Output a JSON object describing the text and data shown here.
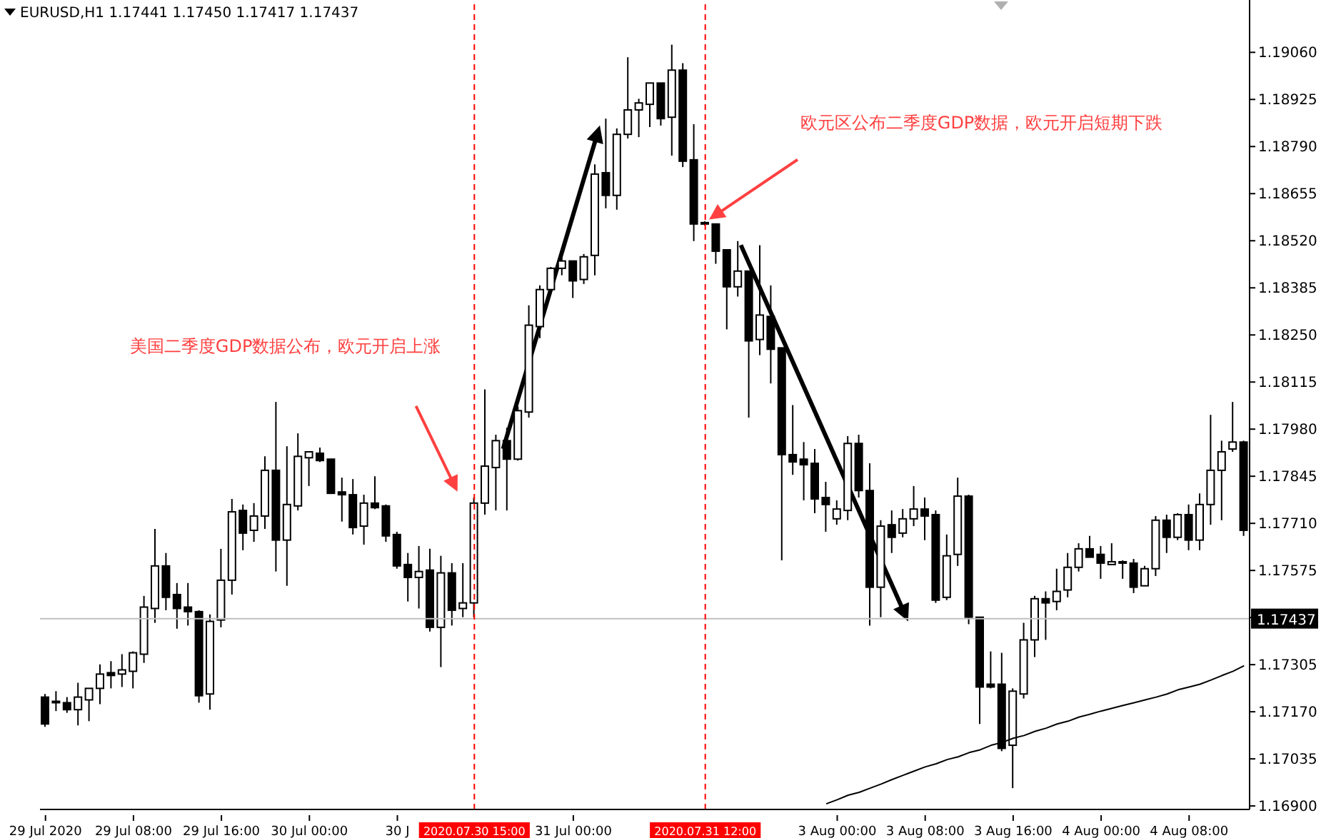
{
  "chart_data": {
    "type": "candlestick",
    "title": "EURUSD,H1  1.17441 1.17450 1.17417 1.17437",
    "categories": [
      "29 Jul 2020",
      null,
      null,
      null,
      null,
      null,
      null,
      null,
      "29 Jul 08:00",
      null,
      null,
      null,
      null,
      null,
      null,
      null,
      "29 Jul 16:00",
      null,
      null,
      null,
      null,
      null,
      null,
      null,
      "30 Jul 00:00",
      null,
      null,
      null,
      null,
      null,
      null,
      null,
      "30 J",
      null,
      null,
      null,
      null,
      null,
      null,
      "2020.07.30 15:00",
      null,
      null,
      null,
      null,
      null,
      null,
      null,
      null,
      "31 Jul 00:00",
      null,
      null,
      null,
      null,
      null,
      null,
      null,
      null,
      null,
      null,
      null,
      "2020.07.31 12:00",
      null,
      null,
      null,
      null,
      null,
      null,
      null,
      null,
      null,
      null,
      null,
      "3 Aug 00:00",
      null,
      null,
      null,
      null,
      null,
      null,
      null,
      "3 Aug 08:00",
      null,
      null,
      null,
      null,
      null,
      null,
      null,
      "3 Aug 16:00",
      null,
      null,
      null,
      null,
      null,
      null,
      null,
      "4 Aug 00:00",
      null,
      null,
      null,
      null,
      null,
      null,
      null,
      "4 Aug 08:00",
      null,
      null,
      null,
      null,
      null
    ],
    "ohlc": [
      [
        1.17212,
        1.17221,
        1.17127,
        1.17135
      ],
      [
        1.17196,
        1.17229,
        1.17172,
        1.172
      ],
      [
        1.17196,
        1.17212,
        1.17167,
        1.17176
      ],
      [
        1.17176,
        1.17253,
        1.17131,
        1.17212
      ],
      [
        1.17204,
        1.17237,
        1.17143,
        1.17237
      ],
      [
        1.17237,
        1.17306,
        1.17192,
        1.17278
      ],
      [
        1.17282,
        1.17315,
        1.17237,
        1.17274
      ],
      [
        1.17278,
        1.17335,
        1.17241,
        1.1729
      ],
      [
        1.17286,
        1.17343,
        1.17237,
        1.17339
      ],
      [
        1.17335,
        1.17502,
        1.1731,
        1.1747
      ],
      [
        1.17466,
        1.17694,
        1.17425,
        1.17588
      ],
      [
        1.17588,
        1.17625,
        1.17461,
        1.17498
      ],
      [
        1.17506,
        1.17539,
        1.17408,
        1.17466
      ],
      [
        1.1747,
        1.17539,
        1.17417,
        1.17457
      ],
      [
        1.17457,
        1.17461,
        1.17196,
        1.17216
      ],
      [
        1.17221,
        1.17449,
        1.17176,
        1.17429
      ],
      [
        1.17433,
        1.17637,
        1.17412,
        1.17547
      ],
      [
        1.17547,
        1.1778,
        1.17506,
        1.17743
      ],
      [
        1.17747,
        1.17764,
        1.17633,
        1.17682
      ],
      [
        1.1769,
        1.17768,
        1.17657,
        1.17731
      ],
      [
        1.17731,
        1.17902,
        1.17694,
        1.17862
      ],
      [
        1.17862,
        1.18058,
        1.17572,
        1.17662
      ],
      [
        1.17662,
        1.17931,
        1.17531,
        1.17764
      ],
      [
        1.1776,
        1.17968,
        1.17747,
        1.17902
      ],
      [
        1.17898,
        1.17915,
        1.17817,
        1.17915
      ],
      [
        1.17911,
        1.17927,
        1.17886,
        1.1789
      ],
      [
        1.17894,
        1.17894,
        1.17796,
        1.17796
      ],
      [
        1.178,
        1.17841,
        1.17715,
        1.17792
      ],
      [
        1.17792,
        1.17837,
        1.17678,
        1.17698
      ],
      [
        1.17702,
        1.17792,
        1.17649,
        1.17768
      ],
      [
        1.17768,
        1.17845,
        1.17751,
        1.17755
      ],
      [
        1.1776,
        1.17764,
        1.17657,
        1.17674
      ],
      [
        1.17678,
        1.17686,
        1.1758,
        1.17588
      ],
      [
        1.17592,
        1.17625,
        1.17486,
        1.17555
      ],
      [
        1.17555,
        1.17645,
        1.17466,
        1.17572
      ],
      [
        1.17576,
        1.17637,
        1.174,
        1.17412
      ],
      [
        1.17412,
        1.17617,
        1.17298,
        1.17568
      ],
      [
        1.17568,
        1.17596,
        1.17417,
        1.17461
      ],
      [
        1.17466,
        1.17596,
        1.17441,
        1.17482
      ],
      [
        1.17482,
        1.17784,
        1.17441,
        1.17768
      ],
      [
        1.17768,
        1.18094,
        1.17735,
        1.17874
      ],
      [
        1.1787,
        1.17964,
        1.17747,
        1.17947
      ],
      [
        1.17947,
        1.17984,
        1.17747,
        1.17894
      ],
      [
        1.17894,
        1.18045,
        1.1789,
        1.18033
      ],
      [
        1.18029,
        1.18335,
        1.18013,
        1.18278
      ],
      [
        1.18274,
        1.18392,
        1.18241,
        1.1838
      ],
      [
        1.1838,
        1.18445,
        1.18376,
        1.18441
      ],
      [
        1.18441,
        1.18474,
        1.18421,
        1.18462
      ],
      [
        1.18462,
        1.18462,
        1.18356,
        1.18405
      ],
      [
        1.18409,
        1.18482,
        1.18396,
        1.18474
      ],
      [
        1.18478,
        1.18739,
        1.18421,
        1.18711
      ],
      [
        1.18715,
        1.1887,
        1.18613,
        1.1865
      ],
      [
        1.1865,
        1.18842,
        1.18609,
        1.18825
      ],
      [
        1.18825,
        1.19046,
        1.18813,
        1.18895
      ],
      [
        1.18895,
        1.18927,
        1.18817,
        1.18915
      ],
      [
        1.18911,
        1.18972,
        1.18846,
        1.18972
      ],
      [
        1.18972,
        1.18972,
        1.1885,
        1.1887
      ],
      [
        1.18874,
        1.19082,
        1.18764,
        1.19009
      ],
      [
        1.19009,
        1.19029,
        1.18731,
        1.18748
      ],
      [
        1.18752,
        1.18854,
        1.18519,
        1.18568
      ],
      [
        1.18568,
        1.18576,
        1.18564,
        1.18572
      ],
      [
        1.18568,
        1.18568,
        1.18454,
        1.1849
      ],
      [
        1.18494,
        1.18494,
        1.18266,
        1.18388
      ],
      [
        1.18388,
        1.18519,
        1.1836,
        1.18433
      ],
      [
        1.18433,
        1.18433,
        1.18013,
        1.18233
      ],
      [
        1.18237,
        1.18507,
        1.18192,
        1.18307
      ],
      [
        1.18303,
        1.18392,
        1.18111,
        1.18209
      ],
      [
        1.18213,
        1.18213,
        1.17604,
        1.17907
      ],
      [
        1.17907,
        1.18049,
        1.17849,
        1.17886
      ],
      [
        1.17894,
        1.17943,
        1.17776,
        1.17878
      ],
      [
        1.17882,
        1.17923,
        1.17739,
        1.1778
      ],
      [
        1.17784,
        1.17829,
        1.17686,
        1.17764
      ],
      [
        1.17723,
        1.17776,
        1.17706,
        1.17751
      ],
      [
        1.17747,
        1.1796,
        1.17719,
        1.17939
      ],
      [
        1.17939,
        1.17964,
        1.17784,
        1.17804
      ],
      [
        1.17804,
        1.17882,
        1.17417,
        1.17527
      ],
      [
        1.17527,
        1.17719,
        1.17441,
        1.17702
      ],
      [
        1.17706,
        1.17747,
        1.17625,
        1.1767
      ],
      [
        1.17682,
        1.17751,
        1.1767,
        1.17723
      ],
      [
        1.17723,
        1.17817,
        1.17702,
        1.17751
      ],
      [
        1.17751,
        1.17784,
        1.17662,
        1.17731
      ],
      [
        1.17735,
        1.17747,
        1.17482,
        1.1749
      ],
      [
        1.17498,
        1.17678,
        1.1749,
        1.17617
      ],
      [
        1.17621,
        1.17841,
        1.17588,
        1.17788
      ],
      [
        1.17788,
        1.17792,
        1.17421,
        1.17441
      ],
      [
        1.17441,
        1.17441,
        1.17135,
        1.17241
      ],
      [
        1.17249,
        1.17343,
        1.17237,
        1.17241
      ],
      [
        1.17249,
        1.17339,
        1.17057,
        1.17065
      ],
      [
        1.17074,
        1.17237,
        1.16951,
        1.17229
      ],
      [
        1.17221,
        1.17425,
        1.17208,
        1.17376
      ],
      [
        1.17376,
        1.17502,
        1.17327,
        1.17494
      ],
      [
        1.17494,
        1.17515,
        1.17376,
        1.17482
      ],
      [
        1.17486,
        1.1758,
        1.17461,
        1.17515
      ],
      [
        1.17519,
        1.17625,
        1.17498,
        1.17584
      ],
      [
        1.17584,
        1.17653,
        1.17572,
        1.17637
      ],
      [
        1.17637,
        1.17674,
        1.17613,
        1.17613
      ],
      [
        1.17621,
        1.17645,
        1.17551,
        1.17596
      ],
      [
        1.17592,
        1.17653,
        1.17592,
        1.176
      ],
      [
        1.176,
        1.17604,
        1.17551,
        1.17596
      ],
      [
        1.17596,
        1.17608,
        1.1751,
        1.17527
      ],
      [
        1.17531,
        1.17588,
        1.17531,
        1.1758
      ],
      [
        1.1758,
        1.17731,
        1.17559,
        1.17719
      ],
      [
        1.17719,
        1.17735,
        1.17625,
        1.1767
      ],
      [
        1.1767,
        1.17739,
        1.17662,
        1.17735
      ],
      [
        1.17735,
        1.17764,
        1.17633,
        1.17662
      ],
      [
        1.17662,
        1.17796,
        1.17633,
        1.17764
      ],
      [
        1.17764,
        1.18021,
        1.17706,
        1.17862
      ],
      [
        1.17862,
        1.17947,
        1.17719,
        1.17915
      ],
      [
        1.17923,
        1.18058,
        1.17915,
        1.17943
      ],
      [
        1.17943,
        1.17947,
        1.17674,
        1.1769
      ]
    ],
    "color": "#000000",
    "series": [
      {
        "type": "line",
        "color": "#000000",
        "values": [
          null,
          null,
          null,
          null,
          null,
          null,
          null,
          null,
          null,
          null,
          null,
          null,
          null,
          null,
          null,
          null,
          null,
          null,
          null,
          null,
          null,
          null,
          null,
          null,
          null,
          null,
          null,
          null,
          null,
          null,
          null,
          null,
          null,
          null,
          null,
          null,
          null,
          null,
          null,
          null,
          null,
          null,
          null,
          null,
          null,
          null,
          null,
          null,
          null,
          null,
          null,
          null,
          null,
          null,
          null,
          null,
          null,
          null,
          null,
          null,
          null,
          null,
          null,
          null,
          null,
          null,
          null,
          null,
          null,
          null,
          null,
          1.16906,
          1.16918,
          1.16931,
          1.16939,
          1.16951,
          1.16963,
          1.16976,
          1.16988,
          1.17,
          1.17012,
          1.17021,
          1.17033,
          1.17041,
          1.17053,
          1.17061,
          1.17074,
          1.17082,
          1.17094,
          1.17102,
          1.17114,
          1.17123,
          1.17135,
          1.17143,
          1.17155,
          1.17163,
          1.17172,
          1.1718,
          1.17188,
          1.17196,
          1.17204,
          1.17212,
          1.17221,
          1.17233,
          1.17241,
          1.17249,
          1.17261,
          1.17274,
          1.17286,
          1.17302
        ]
      }
    ],
    "ylim": [
      1.1689,
      1.1921
    ],
    "yticks": [
      {
        "value": 1.169,
        "label": "1.16900"
      },
      {
        "value": 1.17035,
        "label": "1.17035"
      },
      {
        "value": 1.1717,
        "label": "1.17170"
      },
      {
        "value": 1.17305,
        "label": "1.17305"
      },
      {
        "value": 1.1744,
        "label": null
      },
      {
        "value": 1.17575,
        "label": "1.17575"
      },
      {
        "value": 1.1771,
        "label": "1.17710"
      },
      {
        "value": 1.17845,
        "label": "1.17845"
      },
      {
        "value": 1.1798,
        "label": "1.17980"
      },
      {
        "value": 1.18115,
        "label": "1.18115"
      },
      {
        "value": 1.1825,
        "label": "1.18250"
      },
      {
        "value": 1.18385,
        "label": "1.18385"
      },
      {
        "value": 1.1852,
        "label": "1.18520"
      },
      {
        "value": 1.18655,
        "label": "1.18655"
      },
      {
        "value": 1.1879,
        "label": "1.18790"
      },
      {
        "value": 1.18925,
        "label": "1.18925"
      },
      {
        "value": 1.1906,
        "label": "1.19060"
      }
    ],
    "ref_lines": [
      {
        "axis": "x",
        "value": "2020.07.30 15:00",
        "color": "#ff0000",
        "line_style": "dashed"
      },
      {
        "axis": "x",
        "value": "2020.07.31 12:00",
        "color": "#ff0000",
        "line_style": "dashed"
      },
      {
        "axis": "y",
        "value": 1.17437,
        "label": "1.17437",
        "color": "#c0c0c0",
        "line_style": "solid"
      }
    ],
    "annotations": [
      "美国二季度GDP数据公布，欧元开启上涨",
      "欧元区公布二季度GDP数据，欧元开启短期下跌"
    ]
  }
}
